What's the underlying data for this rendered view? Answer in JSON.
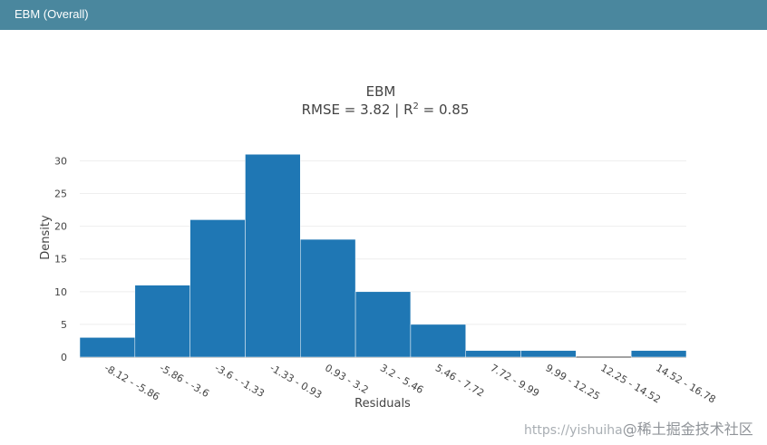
{
  "header": {
    "title": "EBM (Overall)"
  },
  "colors": {
    "header_bg": "#4a879e",
    "bar": "#1f77b4",
    "grid": "#eeeeee"
  },
  "chart_data": {
    "type": "bar",
    "title": "EBM",
    "subtitle_prefix": "RMSE = 3.82 | R",
    "subtitle_sup": "2",
    "subtitle_suffix": " = 0.85",
    "xlabel": "Residuals",
    "ylabel": "Density",
    "ylim": [
      0,
      32
    ],
    "yticks": [
      0,
      5,
      10,
      15,
      20,
      25,
      30
    ],
    "grid": true,
    "categories": [
      "-8.12 - -5.86",
      "-5.86 - -3.6",
      "-3.6 - -1.33",
      "-1.33 - 0.93",
      "0.93 - 3.2",
      "3.2 - 5.46",
      "5.46 - 7.72",
      "7.72 - 9.99",
      "9.99 - 12.25",
      "12.25 - 14.52",
      "14.52 - 16.78"
    ],
    "values": [
      3,
      11,
      21,
      31,
      18,
      10,
      5,
      1,
      1,
      0,
      1
    ]
  },
  "watermark": {
    "url": "https://yishuiha",
    "brand": "@稀土掘金技术社区"
  }
}
